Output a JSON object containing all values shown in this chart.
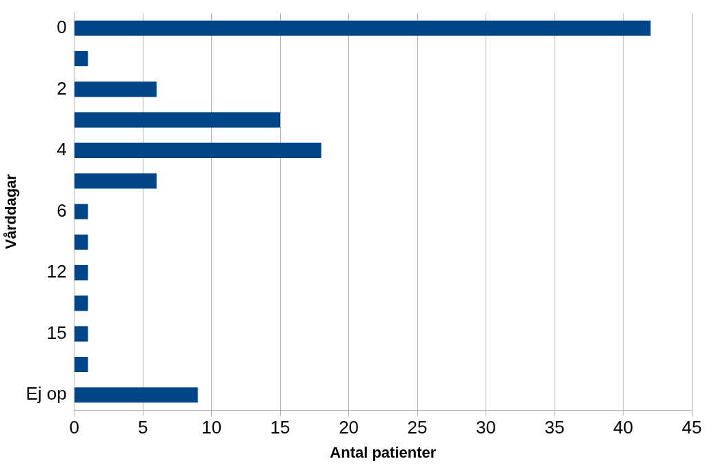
{
  "chart_data": {
    "type": "bar",
    "orientation": "horizontal",
    "xlabel": "Antal patienter",
    "ylabel": "Vårddagar",
    "categories": [
      "0",
      null,
      "2",
      null,
      "4",
      null,
      "6",
      null,
      "12",
      null,
      "15",
      null,
      "Ej op"
    ],
    "values": [
      42,
      1,
      6,
      15,
      18,
      6,
      1,
      1,
      1,
      1,
      1,
      1,
      9
    ],
    "color": "#004586",
    "xlim": [
      0,
      45
    ],
    "xticks": [
      0,
      5,
      10,
      15,
      20,
      25,
      30,
      35,
      40,
      45
    ],
    "grid": "x"
  }
}
